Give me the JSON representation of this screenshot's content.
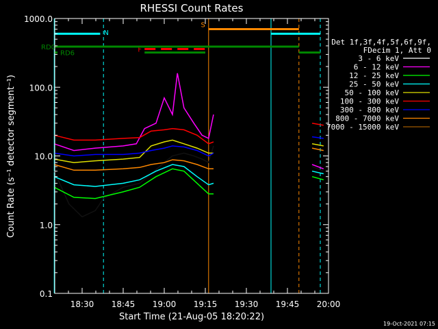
{
  "chart_data": {
    "type": "line",
    "title": "RHESSI Count Rates",
    "xlabel": "Start Time (21-Aug-05 18:20:22)",
    "ylabel": "Count Rate (s⁻¹ detector segment⁻¹)",
    "yscale": "log",
    "ylim": [
      0.1,
      1000.0
    ],
    "xlim": [
      "18:20",
      "20:00"
    ],
    "x_ticks": [
      "18:30",
      "18:45",
      "19:00",
      "19:15",
      "19:30",
      "19:45",
      "20:00"
    ],
    "y_ticks": [
      "0.1",
      "1.0",
      "10.0",
      "100.0",
      "1000.0"
    ],
    "grid": false,
    "legend": {
      "position": "right",
      "header": [
        "Det 1f,3f,4f,5f,6f,9f,",
        "FDecim 1, Att 0"
      ],
      "entries": [
        {
          "label": "3 - 6 keV",
          "color": "#ffffff"
        },
        {
          "label": "6 - 12 keV",
          "color": "#ff00ff"
        },
        {
          "label": "12 - 25 keV",
          "color": "#00ff00"
        },
        {
          "label": "25 - 50 keV",
          "color": "#00ffff"
        },
        {
          "label": "50 - 100 keV",
          "color": "#e0e000"
        },
        {
          "label": "100 - 300 keV",
          "color": "#ff0000"
        },
        {
          "label": "300 - 800 keV",
          "color": "#0000ff"
        },
        {
          "label": "800 - 7000 keV",
          "color": "#ff8800"
        },
        {
          "label": "7000 - 15000 keV",
          "color": "#a05a00"
        }
      ]
    },
    "series": [
      {
        "name": "3 - 6 keV",
        "color": "#111111",
        "segments": [
          [
            [
              18.33,
              6.0
            ],
            [
              18.42,
              2.0
            ],
            [
              18.5,
              1.3
            ],
            [
              18.58,
              1.6
            ],
            [
              18.63,
              2.4
            ],
            [
              18.75,
              3.5
            ],
            [
              18.85,
              4.0
            ],
            [
              18.92,
              5.5
            ],
            [
              19.0,
              8.0
            ],
            [
              19.05,
              10.0
            ],
            [
              19.12,
              11.0
            ],
            [
              19.18,
              10.0
            ],
            [
              19.23,
              9.0
            ],
            [
              19.27,
              8.0
            ],
            [
              19.3,
              14.0
            ]
          ],
          [
            [
              19.9,
              7.0
            ],
            [
              19.97,
              6.0
            ]
          ]
        ]
      },
      {
        "name": "6 - 12 keV",
        "color": "#ff00ff",
        "segments": [
          [
            [
              18.33,
              15.0
            ],
            [
              18.45,
              12.0
            ],
            [
              18.58,
              13.0
            ],
            [
              18.75,
              14.0
            ],
            [
              18.83,
              15.0
            ],
            [
              18.88,
              25.0
            ],
            [
              18.95,
              30.0
            ],
            [
              19.0,
              70.0
            ],
            [
              19.05,
              40.0
            ],
            [
              19.08,
              160.0
            ],
            [
              19.12,
              50.0
            ],
            [
              19.18,
              30.0
            ],
            [
              19.23,
              20.0
            ],
            [
              19.27,
              18.0
            ],
            [
              19.3,
              40.0
            ]
          ],
          [
            [
              19.9,
              7.5
            ],
            [
              19.97,
              6.5
            ]
          ]
        ]
      },
      {
        "name": "12 - 25 keV",
        "color": "#00ff00",
        "segments": [
          [
            [
              18.33,
              3.5
            ],
            [
              18.45,
              2.5
            ],
            [
              18.58,
              2.4
            ],
            [
              18.75,
              3.0
            ],
            [
              18.85,
              3.5
            ],
            [
              18.95,
              5.0
            ],
            [
              19.05,
              6.5
            ],
            [
              19.12,
              6.0
            ],
            [
              19.2,
              4.0
            ],
            [
              19.27,
              2.8
            ],
            [
              19.3,
              2.8
            ]
          ],
          [
            [
              19.9,
              5.0
            ],
            [
              19.97,
              4.5
            ]
          ]
        ]
      },
      {
        "name": "25 - 50 keV",
        "color": "#00ffff",
        "segments": [
          [
            [
              18.33,
              5.0
            ],
            [
              18.45,
              3.8
            ],
            [
              18.58,
              3.6
            ],
            [
              18.75,
              4.0
            ],
            [
              18.85,
              4.5
            ],
            [
              18.95,
              6.0
            ],
            [
              19.05,
              7.5
            ],
            [
              19.12,
              7.0
            ],
            [
              19.2,
              5.0
            ],
            [
              19.27,
              3.8
            ],
            [
              19.3,
              4.0
            ]
          ],
          [
            [
              19.9,
              6.0
            ],
            [
              19.97,
              5.5
            ]
          ]
        ]
      },
      {
        "name": "50 - 100 keV",
        "color": "#e0e000",
        "segments": [
          [
            [
              18.33,
              9.0
            ],
            [
              18.45,
              8.0
            ],
            [
              18.58,
              8.5
            ],
            [
              18.75,
              9.0
            ],
            [
              18.85,
              9.5
            ],
            [
              18.92,
              14.0
            ],
            [
              19.0,
              16.0
            ],
            [
              19.05,
              17.0
            ],
            [
              19.12,
              15.0
            ],
            [
              19.2,
              13.0
            ],
            [
              19.27,
              11.0
            ],
            [
              19.3,
              11.0
            ]
          ],
          [
            [
              19.9,
              15.0
            ],
            [
              19.97,
              14.0
            ]
          ]
        ]
      },
      {
        "name": "100 - 300 keV",
        "color": "#ff0000",
        "segments": [
          [
            [
              18.33,
              20.0
            ],
            [
              18.45,
              17.0
            ],
            [
              18.58,
              17.0
            ],
            [
              18.75,
              18.0
            ],
            [
              18.85,
              18.5
            ],
            [
              18.92,
              23.0
            ],
            [
              19.0,
              24.0
            ],
            [
              19.05,
              25.0
            ],
            [
              19.12,
              24.0
            ],
            [
              19.2,
              20.0
            ],
            [
              19.27,
              15.0
            ],
            [
              19.3,
              16.0
            ]
          ],
          [
            [
              19.9,
              30.0
            ],
            [
              19.97,
              28.0
            ]
          ]
        ]
      },
      {
        "name": "300 - 800 keV",
        "color": "#0000ff",
        "segments": [
          [
            [
              18.33,
              11.0
            ],
            [
              18.45,
              10.0
            ],
            [
              18.58,
              10.5
            ],
            [
              18.75,
              10.5
            ],
            [
              18.85,
              11.0
            ],
            [
              18.92,
              12.0
            ],
            [
              19.0,
              13.0
            ],
            [
              19.05,
              14.0
            ],
            [
              19.12,
              13.5
            ],
            [
              19.2,
              12.0
            ],
            [
              19.27,
              10.0
            ],
            [
              19.3,
              11.0
            ]
          ],
          [
            [
              19.9,
              19.0
            ],
            [
              19.97,
              18.0
            ]
          ]
        ]
      },
      {
        "name": "800 - 7000 keV",
        "color": "#ff8800",
        "segments": [
          [
            [
              18.33,
              7.5
            ],
            [
              18.45,
              6.2
            ],
            [
              18.58,
              6.2
            ],
            [
              18.75,
              6.5
            ],
            [
              18.85,
              6.8
            ],
            [
              18.92,
              7.5
            ],
            [
              19.0,
              8.0
            ],
            [
              19.05,
              8.8
            ],
            [
              19.12,
              8.5
            ],
            [
              19.2,
              7.5
            ],
            [
              19.27,
              6.5
            ],
            [
              19.3,
              6.5
            ]
          ],
          [
            [
              19.9,
              13.0
            ],
            [
              19.97,
              12.0
            ]
          ]
        ]
      },
      {
        "name": "7000 - 15000 keV",
        "color": "#a05a00",
        "segments": []
      }
    ],
    "markers": {
      "vlines": [
        {
          "x": 18.33,
          "color": "#00ffff",
          "style": "solid"
        },
        {
          "x": 18.63,
          "color": "#00ffff",
          "style": "dashed"
        },
        {
          "x": 19.27,
          "color": "#ff8800",
          "style": "solid"
        },
        {
          "x": 19.65,
          "color": "#00ffff",
          "style": "solid"
        },
        {
          "x": 19.82,
          "color": "#ff8800",
          "style": "dashed"
        },
        {
          "x": 19.95,
          "color": "#00ffff",
          "style": "dashed"
        }
      ],
      "bars": [
        {
          "label": "N",
          "color": "#00ffff",
          "style": "solid",
          "y": 600,
          "segments": [
            [
              18.33,
              18.61
            ],
            [
              19.65,
              19.95
            ]
          ]
        },
        {
          "label": "F",
          "color": "#ff0000",
          "style": "dashed",
          "y": 360,
          "segments": [
            [
              18.88,
              19.25
            ]
          ]
        },
        {
          "label": "S",
          "color": "#ff8800",
          "style": "solid",
          "y": 700,
          "segments": [
            [
              19.27,
              19.82
            ]
          ]
        },
        {
          "label": "RD0",
          "color": "#008800",
          "style": "solid",
          "y": 390,
          "segments": [
            [
              18.33,
              19.82
            ]
          ]
        },
        {
          "label": "RD6",
          "color": "#008800",
          "style": "solid",
          "y": 320,
          "segments": [
            [
              18.33,
              18.35
            ],
            [
              18.88,
              19.25
            ],
            [
              19.82,
              19.95
            ]
          ]
        }
      ]
    }
  },
  "footer": {
    "timestamp": "19-Oct-2021 07:15"
  }
}
